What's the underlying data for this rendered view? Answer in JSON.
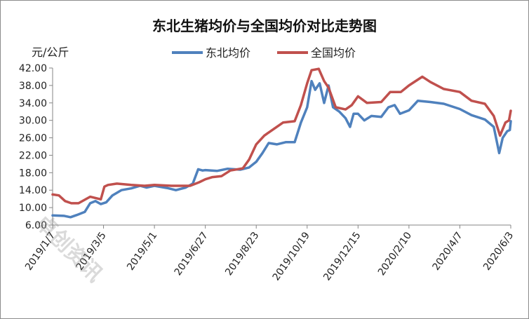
{
  "chart_data": {
    "type": "line",
    "title": "东北生猪均价与全国均价对比走势图",
    "ylabel": "元/公斤",
    "xlabel": "",
    "ylim": [
      6,
      42
    ],
    "yticks": [
      "6.00",
      "10.00",
      "14.00",
      "18.00",
      "22.00",
      "26.00",
      "30.00",
      "34.00",
      "38.00",
      "42.00"
    ],
    "xlim": [
      "2019-01-07",
      "2020-06-03"
    ],
    "xtick_labels": [
      "2019/1/7",
      "2019/3/5",
      "2019/5/1",
      "2019/6/27",
      "2019/8/23",
      "2019/10/19",
      "2019/12/15",
      "2020/2/10",
      "2020/4/7",
      "2020/6/3"
    ],
    "xtick_dates": [
      "2019-01-07",
      "2019-03-05",
      "2019-05-01",
      "2019-06-27",
      "2019-08-23",
      "2019-10-19",
      "2019-12-15",
      "2020-02-10",
      "2020-04-07",
      "2020-06-03"
    ],
    "legend_position": "top",
    "series": [
      {
        "name": "东北均价",
        "color": "#4f81bd",
        "points": [
          [
            "2019-01-07",
            8.2
          ],
          [
            "2019-01-20",
            8.1
          ],
          [
            "2019-01-27",
            7.8
          ],
          [
            "2019-02-03",
            8.3
          ],
          [
            "2019-02-12",
            9.0
          ],
          [
            "2019-02-18",
            11.0
          ],
          [
            "2019-02-24",
            11.5
          ],
          [
            "2019-03-02",
            10.8
          ],
          [
            "2019-03-08",
            11.2
          ],
          [
            "2019-03-15",
            12.8
          ],
          [
            "2019-03-25",
            14.0
          ],
          [
            "2019-04-05",
            14.4
          ],
          [
            "2019-04-15",
            15.0
          ],
          [
            "2019-04-22",
            14.6
          ],
          [
            "2019-05-01",
            15.0
          ],
          [
            "2019-05-15",
            14.5
          ],
          [
            "2019-05-25",
            14.0
          ],
          [
            "2019-06-05",
            14.6
          ],
          [
            "2019-06-13",
            15.5
          ],
          [
            "2019-06-19",
            18.8
          ],
          [
            "2019-06-24",
            18.5
          ],
          [
            "2019-06-27",
            18.6
          ],
          [
            "2019-07-10",
            18.4
          ],
          [
            "2019-07-22",
            18.9
          ],
          [
            "2019-08-05",
            18.7
          ],
          [
            "2019-08-15",
            19.2
          ],
          [
            "2019-08-23",
            20.5
          ],
          [
            "2019-08-30",
            22.5
          ],
          [
            "2019-09-06",
            24.8
          ],
          [
            "2019-09-15",
            24.5
          ],
          [
            "2019-09-25",
            25.0
          ],
          [
            "2019-10-05",
            25.0
          ],
          [
            "2019-10-12",
            29.5
          ],
          [
            "2019-10-19",
            33.0
          ],
          [
            "2019-10-24",
            39.0
          ],
          [
            "2019-10-28",
            37.0
          ],
          [
            "2019-11-02",
            38.5
          ],
          [
            "2019-11-07",
            34.0
          ],
          [
            "2019-11-12",
            38.0
          ],
          [
            "2019-11-17",
            33.0
          ],
          [
            "2019-11-24",
            32.0
          ],
          [
            "2019-12-01",
            30.5
          ],
          [
            "2019-12-06",
            28.5
          ],
          [
            "2019-12-10",
            31.5
          ],
          [
            "2019-12-15",
            31.5
          ],
          [
            "2019-12-22",
            30.0
          ],
          [
            "2019-12-30",
            31.0
          ],
          [
            "2020-01-10",
            30.8
          ],
          [
            "2020-01-18",
            33.0
          ],
          [
            "2020-01-25",
            33.5
          ],
          [
            "2020-01-31",
            31.5
          ],
          [
            "2020-02-10",
            32.3
          ],
          [
            "2020-02-20",
            34.5
          ],
          [
            "2020-03-05",
            34.2
          ],
          [
            "2020-03-20",
            33.8
          ],
          [
            "2020-04-07",
            32.6
          ],
          [
            "2020-04-20",
            31.2
          ],
          [
            "2020-05-05",
            30.2
          ],
          [
            "2020-05-15",
            28.5
          ],
          [
            "2020-05-21",
            22.5
          ],
          [
            "2020-05-25",
            26.0
          ],
          [
            "2020-05-30",
            27.5
          ],
          [
            "2020-06-02",
            27.8
          ],
          [
            "2020-06-03",
            29.8
          ]
        ]
      },
      {
        "name": "全国均价",
        "color": "#c0504d",
        "points": [
          [
            "2019-01-07",
            13.0
          ],
          [
            "2019-01-14",
            12.8
          ],
          [
            "2019-01-21",
            11.5
          ],
          [
            "2019-01-28",
            11.0
          ],
          [
            "2019-02-05",
            11.0
          ],
          [
            "2019-02-18",
            12.5
          ],
          [
            "2019-03-02",
            11.9
          ],
          [
            "2019-03-06",
            14.8
          ],
          [
            "2019-03-10",
            15.2
          ],
          [
            "2019-03-20",
            15.5
          ],
          [
            "2019-04-05",
            15.2
          ],
          [
            "2019-04-20",
            15.0
          ],
          [
            "2019-05-01",
            15.2
          ],
          [
            "2019-05-20",
            15.0
          ],
          [
            "2019-06-10",
            15.0
          ],
          [
            "2019-06-20",
            15.8
          ],
          [
            "2019-06-27",
            16.5
          ],
          [
            "2019-07-05",
            17.0
          ],
          [
            "2019-07-15",
            17.2
          ],
          [
            "2019-07-25",
            18.5
          ],
          [
            "2019-08-08",
            19.0
          ],
          [
            "2019-08-15",
            21.0
          ],
          [
            "2019-08-23",
            24.5
          ],
          [
            "2019-09-01",
            26.5
          ],
          [
            "2019-09-10",
            27.8
          ],
          [
            "2019-09-22",
            29.5
          ],
          [
            "2019-10-05",
            29.8
          ],
          [
            "2019-10-12",
            33.5
          ],
          [
            "2019-10-19",
            38.5
          ],
          [
            "2019-10-24",
            41.5
          ],
          [
            "2019-11-01",
            41.8
          ],
          [
            "2019-11-07",
            39.0
          ],
          [
            "2019-11-12",
            37.5
          ],
          [
            "2019-11-20",
            33.0
          ],
          [
            "2019-12-01",
            32.5
          ],
          [
            "2019-12-08",
            33.5
          ],
          [
            "2019-12-15",
            35.5
          ],
          [
            "2019-12-25",
            34.0
          ],
          [
            "2020-01-10",
            34.2
          ],
          [
            "2020-01-20",
            36.5
          ],
          [
            "2020-02-01",
            36.5
          ],
          [
            "2020-02-10",
            38.0
          ],
          [
            "2020-02-25",
            40.0
          ],
          [
            "2020-03-05",
            38.8
          ],
          [
            "2020-03-20",
            37.2
          ],
          [
            "2020-04-07",
            36.5
          ],
          [
            "2020-04-20",
            34.5
          ],
          [
            "2020-05-05",
            33.8
          ],
          [
            "2020-05-15",
            31.0
          ],
          [
            "2020-05-22",
            26.5
          ],
          [
            "2020-05-28",
            29.5
          ],
          [
            "2020-06-01",
            30.0
          ],
          [
            "2020-06-03",
            32.2
          ]
        ]
      }
    ]
  }
}
